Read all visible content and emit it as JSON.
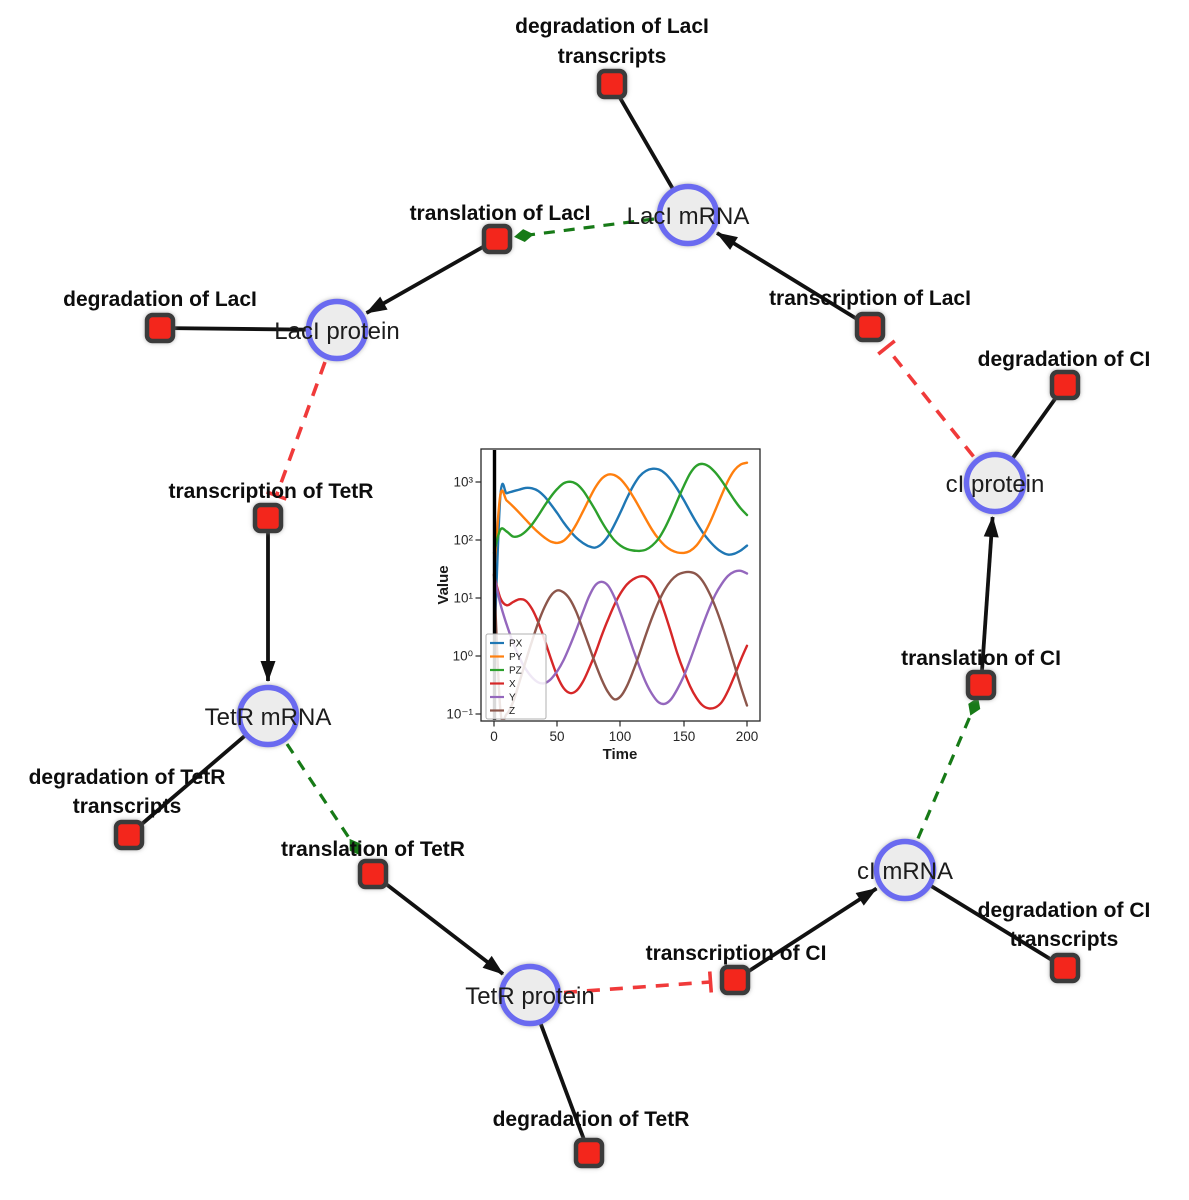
{
  "diagram": {
    "colors": {
      "species_fill": "#ececec",
      "species_border": "#6b6bf0",
      "reaction_fill": "#f3281e",
      "reaction_border": "#3b3b3b",
      "edge_black": "#111111",
      "edge_activation_green": "#177a17",
      "edge_inhibition_red": "#f03a3a"
    },
    "species": [
      {
        "id": "laci-mrna",
        "label": "LacI mRNA"
      },
      {
        "id": "laci-protein",
        "label": "LacI protein"
      },
      {
        "id": "ci-protein",
        "label": "cI protein"
      },
      {
        "id": "tetr-mrna",
        "label": "TetR mRNA"
      },
      {
        "id": "ci-mrna",
        "label": "cI mRNA"
      },
      {
        "id": "tetr-protein",
        "label": "TetR protein"
      }
    ],
    "reactions": [
      {
        "id": "degradation-of-laci-transcripts",
        "lines": [
          "degradation of LacI",
          "transcripts"
        ]
      },
      {
        "id": "translation-of-laci",
        "lines": [
          "translation of LacI"
        ]
      },
      {
        "id": "transcription-of-laci",
        "lines": [
          "transcription of LacI"
        ]
      },
      {
        "id": "degradation-of-laci",
        "lines": [
          "degradation of LacI"
        ]
      },
      {
        "id": "transcription-of-tetr",
        "lines": [
          "transcription of TetR"
        ]
      },
      {
        "id": "degradation-of-ci",
        "lines": [
          "degradation of CI"
        ]
      },
      {
        "id": "translation-of-ci",
        "lines": [
          "translation of CI"
        ]
      },
      {
        "id": "degradation-of-tetr-transcripts",
        "lines": [
          "degradation of TetR",
          "transcripts"
        ]
      },
      {
        "id": "translation-of-tetr",
        "lines": [
          "translation of TetR"
        ]
      },
      {
        "id": "transcription-of-ci",
        "lines": [
          "transcription of CI"
        ]
      },
      {
        "id": "degradation-of-ci-transcripts",
        "lines": [
          "degradation of CI",
          "transcripts"
        ]
      },
      {
        "id": "degradation-of-tetr",
        "lines": [
          "degradation of TetR"
        ]
      }
    ]
  },
  "chart_data": {
    "type": "line",
    "title": "",
    "xlabel": "Time",
    "ylabel": "Value",
    "yscale": "log",
    "xlim": [
      -10,
      210
    ],
    "ylim": [
      0.08,
      3500
    ],
    "xticks": [
      "0",
      "50",
      "100",
      "150",
      "200"
    ],
    "yticks": [
      "10³",
      "10²",
      "10¹",
      "10⁰",
      "10⁻¹"
    ],
    "grid": false,
    "legend_position": "lower left",
    "annotations": [
      "vertical black line at t=0"
    ],
    "x": [
      0,
      5,
      10,
      15,
      20,
      25,
      30,
      35,
      40,
      45,
      50,
      55,
      60,
      65,
      70,
      75,
      80,
      85,
      90,
      95,
      100,
      105,
      110,
      115,
      120,
      125,
      130,
      135,
      140,
      145,
      150,
      155,
      160,
      165,
      170,
      175,
      180,
      185,
      190,
      195,
      200
    ],
    "series": [
      {
        "name": "PX",
        "color": "#1f77b4",
        "values": [
          1,
          560,
          640,
          690,
          740,
          790,
          780,
          700,
          560,
          410,
          290,
          200,
          145,
          110,
          90,
          78,
          74,
          85,
          115,
          180,
          300,
          520,
          850,
          1250,
          1550,
          1690,
          1650,
          1420,
          1080,
          750,
          490,
          310,
          200,
          135,
          98,
          75,
          62,
          56,
          58,
          66,
          80
        ]
      },
      {
        "name": "PY",
        "color": "#ff7f0e",
        "values": [
          25,
          590,
          480,
          380,
          295,
          225,
          172,
          135,
          110,
          94,
          89,
          97,
          125,
          185,
          300,
          500,
          800,
          1130,
          1340,
          1320,
          1120,
          830,
          560,
          360,
          230,
          150,
          105,
          80,
          67,
          61,
          60,
          65,
          80,
          115,
          185,
          330,
          600,
          1050,
          1600,
          2000,
          2150
        ]
      },
      {
        "name": "PZ",
        "color": "#2ca02c",
        "values": [
          60,
          150,
          140,
          115,
          118,
          140,
          185,
          265,
          390,
          560,
          760,
          950,
          1010,
          930,
          730,
          500,
          330,
          210,
          140,
          100,
          80,
          70,
          66,
          65,
          68,
          80,
          105,
          160,
          270,
          480,
          850,
          1400,
          1900,
          2050,
          1850,
          1450,
          1050,
          720,
          490,
          350,
          270
        ]
      },
      {
        "name": "X",
        "color": "#d62728",
        "values": [
          25,
          10,
          7.5,
          8.5,
          9.5,
          9,
          6.5,
          3.8,
          1.9,
          0.9,
          0.45,
          0.28,
          0.23,
          0.25,
          0.35,
          0.6,
          1.1,
          2.2,
          4.2,
          7.5,
          12,
          17,
          21,
          23.5,
          23,
          18,
          11,
          5.5,
          2.5,
          1.1,
          0.55,
          0.3,
          0.19,
          0.14,
          0.125,
          0.13,
          0.16,
          0.25,
          0.45,
          0.85,
          1.5
        ]
      },
      {
        "name": "Y",
        "color": "#9467bd",
        "values": [
          25,
          8,
          3.5,
          1.7,
          0.95,
          0.6,
          0.43,
          0.35,
          0.34,
          0.4,
          0.55,
          0.85,
          1.5,
          2.8,
          5.5,
          10.5,
          16.5,
          19,
          16.5,
          10.5,
          5.5,
          2.7,
          1.3,
          0.65,
          0.35,
          0.22,
          0.16,
          0.15,
          0.18,
          0.27,
          0.45,
          0.85,
          1.7,
          3.4,
          6.5,
          11.5,
          17.5,
          24,
          28.5,
          29.5,
          26.5
        ]
      },
      {
        "name": "Z",
        "color": "#8c564b",
        "values": [
          25,
          0.12,
          0.1,
          0.16,
          0.35,
          0.8,
          1.8,
          3.8,
          7,
          11,
          13.5,
          12.5,
          9.5,
          5.8,
          3,
          1.5,
          0.75,
          0.4,
          0.24,
          0.18,
          0.2,
          0.3,
          0.55,
          1.1,
          2.3,
          4.6,
          8.5,
          14,
          20,
          25,
          27.5,
          28,
          25.5,
          19.5,
          12.5,
          7,
          3.5,
          1.6,
          0.7,
          0.3,
          0.14
        ]
      }
    ]
  }
}
